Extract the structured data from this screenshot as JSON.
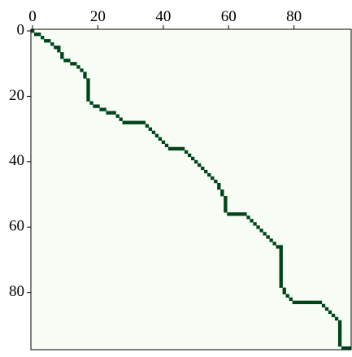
{
  "chart_data": {
    "type": "matrix",
    "x": [
      0,
      1,
      2,
      3,
      4,
      5,
      6,
      7,
      8,
      8,
      9,
      9,
      10,
      11,
      12,
      13,
      14,
      15,
      16,
      16,
      17,
      17,
      17,
      17,
      17,
      17,
      17,
      18,
      19,
      20,
      21,
      22,
      23,
      24,
      25,
      26,
      27,
      28,
      29,
      30,
      31,
      32,
      33,
      34,
      35,
      36,
      37,
      38,
      39,
      40,
      41,
      42,
      43,
      44,
      45,
      46,
      47,
      48,
      49,
      50,
      51,
      52,
      53,
      54,
      55,
      56,
      57,
      57,
      58,
      58,
      59,
      59,
      59,
      59,
      59,
      60,
      61,
      62,
      63,
      64,
      65,
      66,
      67,
      68,
      69,
      70,
      71,
      72,
      73,
      74,
      75,
      76,
      76,
      76,
      76,
      76,
      76,
      76,
      76,
      76,
      76,
      76,
      76,
      76,
      77,
      77,
      78,
      79,
      80,
      81,
      82,
      83,
      84,
      85,
      86,
      87,
      88,
      89,
      90,
      91,
      92,
      93,
      94,
      94,
      94,
      94,
      94,
      94,
      94,
      94,
      95,
      96,
      97
    ],
    "y": [
      0,
      1,
      1,
      2,
      3,
      3,
      4,
      5,
      5,
      6,
      7,
      8,
      9,
      9,
      10,
      10,
      11,
      12,
      13,
      14,
      15,
      16,
      17,
      18,
      19,
      20,
      21,
      22,
      23,
      23,
      24,
      24,
      25,
      25,
      25,
      26,
      27,
      28,
      28,
      28,
      28,
      28,
      28,
      28,
      29,
      30,
      31,
      32,
      33,
      34,
      35,
      36,
      36,
      36,
      36,
      36,
      37,
      38,
      39,
      40,
      41,
      42,
      43,
      44,
      45,
      46,
      47,
      48,
      49,
      50,
      51,
      52,
      53,
      54,
      55,
      56,
      56,
      56,
      56,
      56,
      56,
      57,
      58,
      59,
      60,
      61,
      62,
      63,
      64,
      65,
      66,
      66,
      67,
      68,
      69,
      70,
      71,
      72,
      73,
      74,
      75,
      76,
      77,
      78,
      79,
      80,
      81,
      82,
      83,
      83,
      83,
      83,
      83,
      83,
      83,
      83,
      83,
      84,
      85,
      86,
      87,
      88,
      89,
      90,
      91,
      92,
      93,
      94,
      95,
      96,
      97,
      97,
      97
    ],
    "color": "#00441b",
    "background": "#f7fcf5",
    "xlim": [
      -0.5,
      97.5
    ],
    "ylim": [
      -0.5,
      97.5
    ],
    "y_inverted": true,
    "x_axis_position": "top",
    "xticks": [
      0,
      20,
      40,
      60,
      80
    ],
    "yticks": [
      0,
      20,
      40,
      60,
      80
    ]
  }
}
